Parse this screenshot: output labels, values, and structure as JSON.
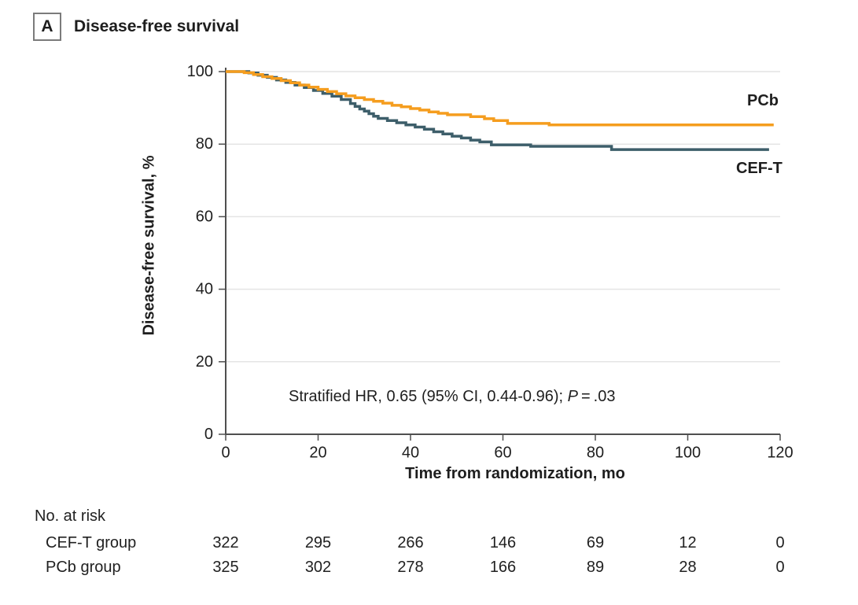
{
  "panel": {
    "label": "A",
    "title": "Disease-free survival"
  },
  "chart_data": {
    "type": "line",
    "subtype": "kaplan-meier-step",
    "title": "Disease-free survival",
    "xlabel": "Time from randomization, mo",
    "ylabel": "Disease-free survival, %",
    "xlim": [
      0,
      120
    ],
    "ylim": [
      0,
      100
    ],
    "x_ticks": [
      0,
      20,
      40,
      60,
      80,
      100,
      120
    ],
    "y_ticks": [
      0,
      20,
      40,
      60,
      80,
      100
    ],
    "grid": "horizontal",
    "grid_color": "#E4E4E4",
    "axis_color": "#4F4F4F",
    "annotation": {
      "prefix": "Stratified HR, 0.65 (95% CI, 0.44-0.96); ",
      "italic": "P",
      "suffix": " = .03"
    },
    "series": [
      {
        "name": "PCb",
        "end_label": "PCb",
        "color": "#F59D1E",
        "points": [
          [
            0,
            100
          ],
          [
            4,
            99.7
          ],
          [
            6,
            99.2
          ],
          [
            8,
            98.6
          ],
          [
            10,
            98.1
          ],
          [
            12,
            97.5
          ],
          [
            14,
            96.9
          ],
          [
            16,
            96.3
          ],
          [
            18,
            95.7
          ],
          [
            20,
            95.1
          ],
          [
            22,
            94.5
          ],
          [
            24,
            93.9
          ],
          [
            26,
            93.3
          ],
          [
            28,
            92.8
          ],
          [
            30,
            92.3
          ],
          [
            32,
            91.8
          ],
          [
            34,
            91.3
          ],
          [
            36,
            90.7
          ],
          [
            38,
            90.3
          ],
          [
            40,
            89.8
          ],
          [
            42,
            89.4
          ],
          [
            44,
            88.9
          ],
          [
            46,
            88.5
          ],
          [
            48,
            88.1
          ],
          [
            53,
            87.6
          ],
          [
            56,
            87.0
          ],
          [
            58,
            86.5
          ],
          [
            61,
            85.7
          ],
          [
            70,
            85.3
          ],
          [
            118.6,
            85.3
          ]
        ]
      },
      {
        "name": "CEF-T",
        "end_label": "CEF-T",
        "color": "#3D5E6A",
        "points": [
          [
            0,
            100
          ],
          [
            5,
            99.6
          ],
          [
            7,
            99.0
          ],
          [
            9,
            98.4
          ],
          [
            11,
            97.7
          ],
          [
            13,
            97.0
          ],
          [
            15,
            96.3
          ],
          [
            17,
            95.6
          ],
          [
            19,
            94.8
          ],
          [
            21,
            94.0
          ],
          [
            23,
            93.2
          ],
          [
            25,
            92.3
          ],
          [
            27,
            91.2
          ],
          [
            28,
            90.4
          ],
          [
            29,
            89.7
          ],
          [
            30,
            89.1
          ],
          [
            31,
            88.4
          ],
          [
            32,
            87.7
          ],
          [
            33,
            87.1
          ],
          [
            35,
            86.5
          ],
          [
            37,
            85.9
          ],
          [
            39,
            85.3
          ],
          [
            41,
            84.7
          ],
          [
            43,
            84.1
          ],
          [
            45,
            83.4
          ],
          [
            47,
            82.8
          ],
          [
            49,
            82.2
          ],
          [
            51,
            81.7
          ],
          [
            53,
            81.1
          ],
          [
            55,
            80.6
          ],
          [
            57.5,
            79.8
          ],
          [
            66,
            79.4
          ],
          [
            83.5,
            78.5
          ],
          [
            117.6,
            78.5
          ]
        ]
      }
    ]
  },
  "risk_table": {
    "title": "No. at risk",
    "rows": [
      {
        "label": "CEF-T group",
        "values": [
          322,
          295,
          266,
          146,
          69,
          12,
          0
        ]
      },
      {
        "label": "PCb group",
        "values": [
          325,
          302,
          278,
          166,
          89,
          28,
          0
        ]
      }
    ]
  }
}
